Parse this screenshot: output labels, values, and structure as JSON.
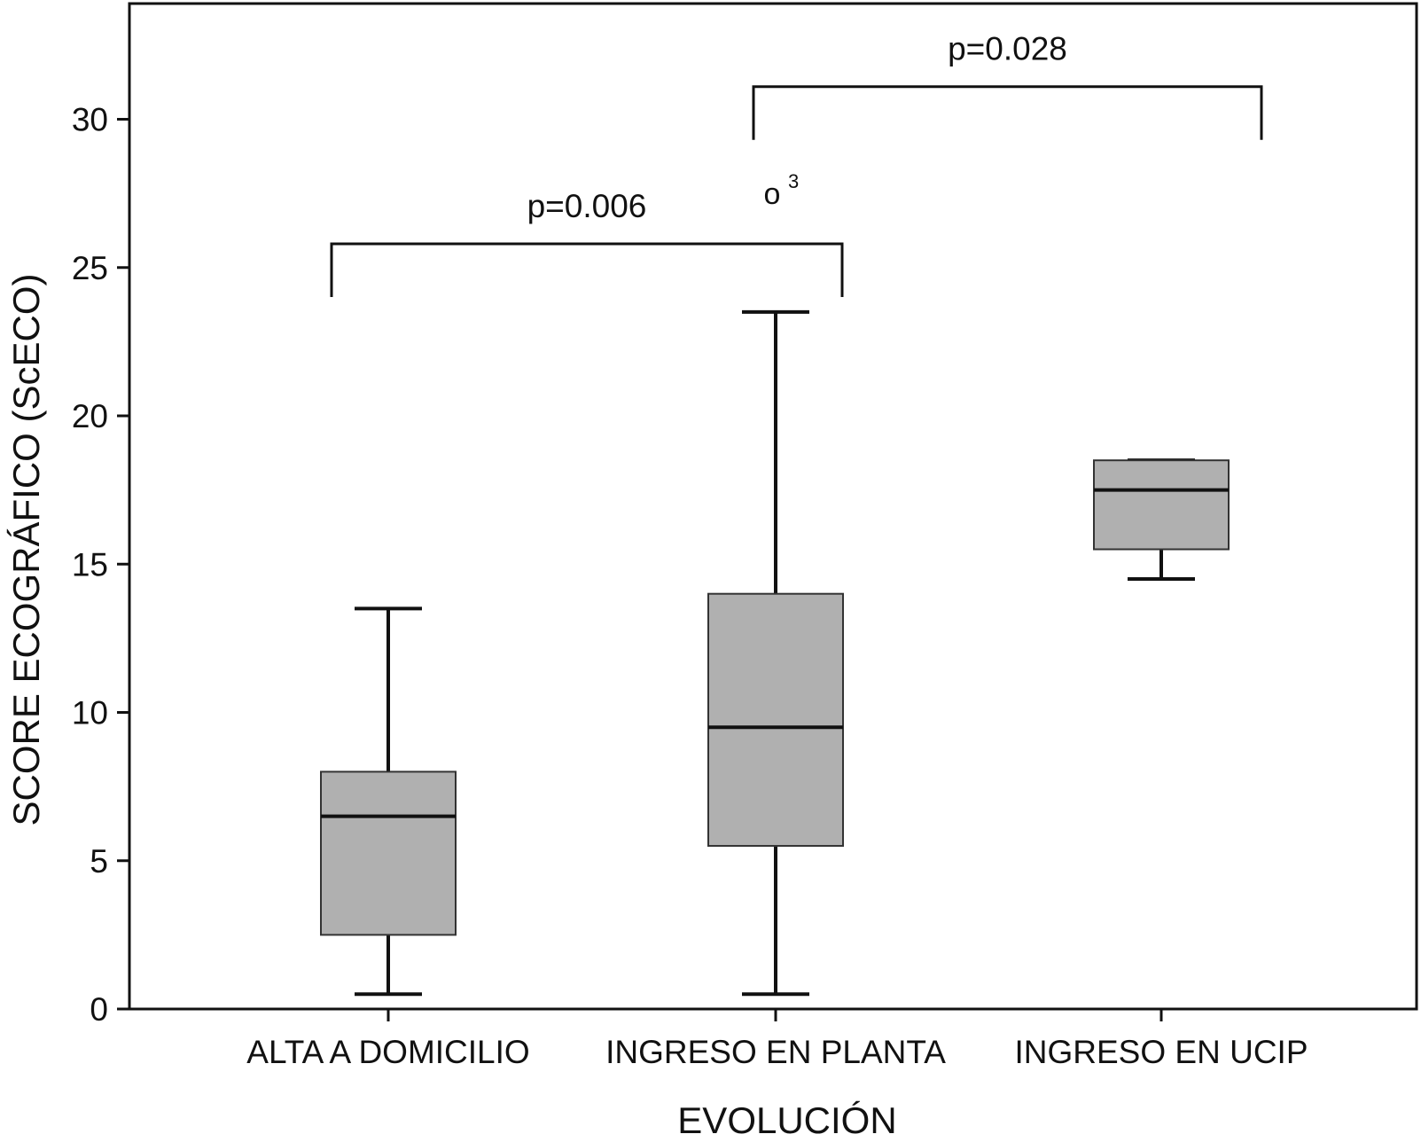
{
  "chart_data": {
    "type": "boxplot",
    "xlabel": "EVOLUCIÓN",
    "ylabel": "SCORE ECOGRÁFICO (ScECO)",
    "ylim": [
      0,
      34
    ],
    "yticks": [
      0,
      5,
      10,
      15,
      20,
      25,
      30
    ],
    "grid": false,
    "box_color": "#b0b0b0",
    "line_color": "#111111",
    "categories": [
      "ALTA A DOMICILIO",
      "INGRESO EN PLANTA",
      "INGRESO EN UCIP"
    ],
    "boxes": [
      {
        "category": "ALTA A DOMICILIO",
        "whisker_low": 0.5,
        "q1": 2.5,
        "median": 6.5,
        "q3": 8,
        "whisker_high": 13.5
      },
      {
        "category": "INGRESO EN PLANTA",
        "whisker_low": 0.5,
        "q1": 5.5,
        "median": 9.5,
        "q3": 14,
        "whisker_high": 23.5
      },
      {
        "category": "INGRESO EN UCIP",
        "whisker_low": 14.5,
        "q1": 15.5,
        "median": 17.5,
        "q3": 18.5,
        "whisker_high": 18.5
      }
    ],
    "outliers": [
      {
        "category": "INGRESO EN PLANTA",
        "y": 27.5,
        "symbol": "o",
        "label": "3"
      }
    ],
    "comparisons": [
      {
        "from": "ALTA A DOMICILIO",
        "to": "INGRESO EN PLANTA",
        "label": "p=0.006",
        "y": 25.8
      },
      {
        "from": "INGRESO EN PLANTA",
        "to": "INGRESO EN UCIP",
        "label": "p=0.028",
        "y": 31.1
      }
    ]
  }
}
